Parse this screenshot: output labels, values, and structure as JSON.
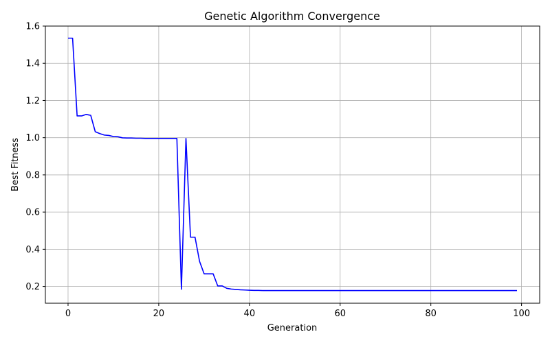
{
  "chart_data": {
    "type": "line",
    "title": "Genetic Algorithm Convergence",
    "xlabel": "Generation",
    "ylabel": "Best Fitness",
    "xlim": [
      -5,
      104
    ],
    "ylim": [
      0.11,
      1.6
    ],
    "xticks": [
      0,
      20,
      40,
      60,
      80,
      100
    ],
    "yticks": [
      0.2,
      0.4,
      0.6,
      0.8,
      1.0,
      1.2,
      1.4,
      1.6
    ],
    "ytick_labels": [
      "0.2",
      "0.4",
      "0.6",
      "0.8",
      "1.0",
      "1.2",
      "1.4",
      "1.6"
    ],
    "grid": true,
    "series": [
      {
        "color": "#0000ff",
        "x": [
          0,
          1,
          2,
          3,
          4,
          5,
          6,
          7,
          8,
          9,
          10,
          11,
          12,
          13,
          14,
          15,
          16,
          17,
          18,
          19,
          20,
          21,
          22,
          23,
          24,
          25,
          26,
          27,
          28,
          29,
          30,
          31,
          32,
          33,
          34,
          35,
          36,
          37,
          38,
          39,
          40,
          41,
          42,
          43,
          44,
          45,
          46,
          47,
          48,
          49,
          50,
          51,
          52,
          53,
          54,
          55,
          56,
          57,
          58,
          59,
          60,
          61,
          62,
          63,
          64,
          65,
          66,
          67,
          68,
          69,
          70,
          71,
          72,
          73,
          74,
          75,
          76,
          77,
          78,
          79,
          80,
          81,
          82,
          83,
          84,
          85,
          86,
          87,
          88,
          89,
          90,
          91,
          92,
          93,
          94,
          95,
          96,
          97,
          98,
          99
        ],
        "y": [
          1.535,
          1.535,
          1.117,
          1.117,
          1.125,
          1.12,
          1.032,
          1.022,
          1.014,
          1.012,
          1.006,
          1.005,
          0.999,
          0.998,
          0.998,
          0.997,
          0.997,
          0.996,
          0.996,
          0.996,
          0.996,
          0.996,
          0.996,
          0.996,
          0.996,
          0.185,
          0.996,
          0.465,
          0.465,
          0.335,
          0.268,
          0.268,
          0.268,
          0.203,
          0.203,
          0.19,
          0.186,
          0.184,
          0.182,
          0.181,
          0.18,
          0.179,
          0.179,
          0.178,
          0.178,
          0.178,
          0.178,
          0.178,
          0.178,
          0.178,
          0.178,
          0.178,
          0.178,
          0.178,
          0.178,
          0.178,
          0.178,
          0.178,
          0.178,
          0.178,
          0.178,
          0.178,
          0.178,
          0.178,
          0.178,
          0.178,
          0.178,
          0.178,
          0.178,
          0.178,
          0.178,
          0.178,
          0.178,
          0.178,
          0.178,
          0.178,
          0.178,
          0.178,
          0.178,
          0.178,
          0.178,
          0.178,
          0.178,
          0.178,
          0.178,
          0.178,
          0.178,
          0.178,
          0.178,
          0.178,
          0.178,
          0.178,
          0.178,
          0.178,
          0.178,
          0.178,
          0.178,
          0.178,
          0.178,
          0.178
        ]
      }
    ]
  }
}
